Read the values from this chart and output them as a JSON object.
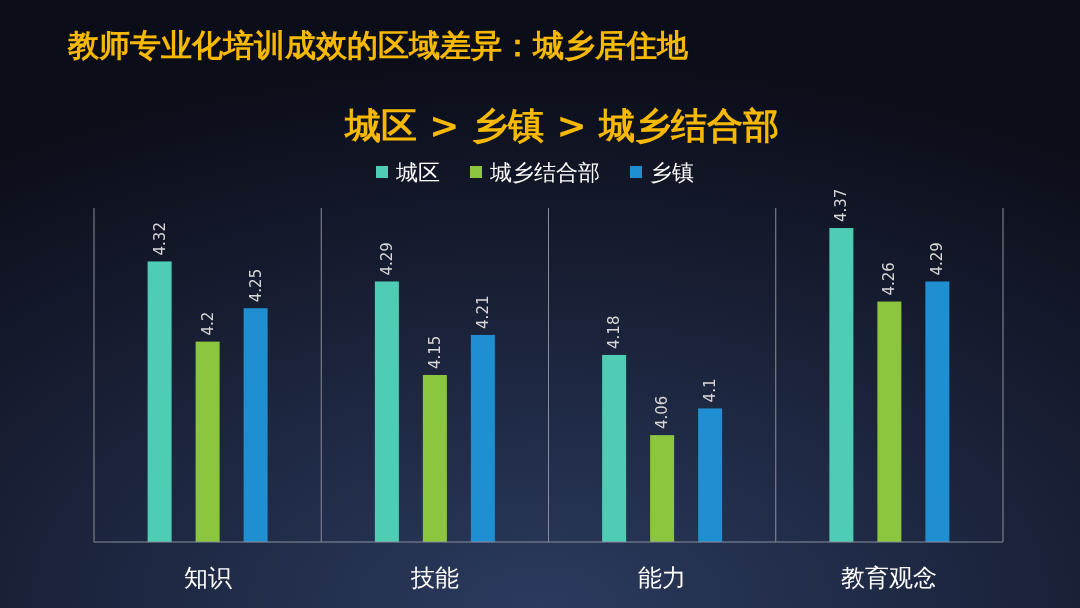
{
  "chart_data": {
    "type": "bar",
    "title": "教师专业化培训成效的区域差异：城乡居住地",
    "subtitle": "城区 > 乡镇 > 城乡结合部",
    "categories": [
      "知识",
      "技能",
      "能力",
      "教育观念"
    ],
    "series": [
      {
        "name": "城区",
        "color": "#4ecdb4",
        "values": [
          4.32,
          4.29,
          4.18,
          4.37
        ]
      },
      {
        "name": "城乡结合部",
        "color": "#8cc63e",
        "values": [
          4.2,
          4.15,
          4.06,
          4.26
        ]
      },
      {
        "name": "乡镇",
        "color": "#1f8fd2",
        "values": [
          4.25,
          4.21,
          4.1,
          4.29
        ]
      }
    ],
    "ylim": [
      3.9,
      4.4
    ],
    "tick_labels": "x",
    "data_labels": true,
    "grid": "x",
    "legend": "top"
  }
}
